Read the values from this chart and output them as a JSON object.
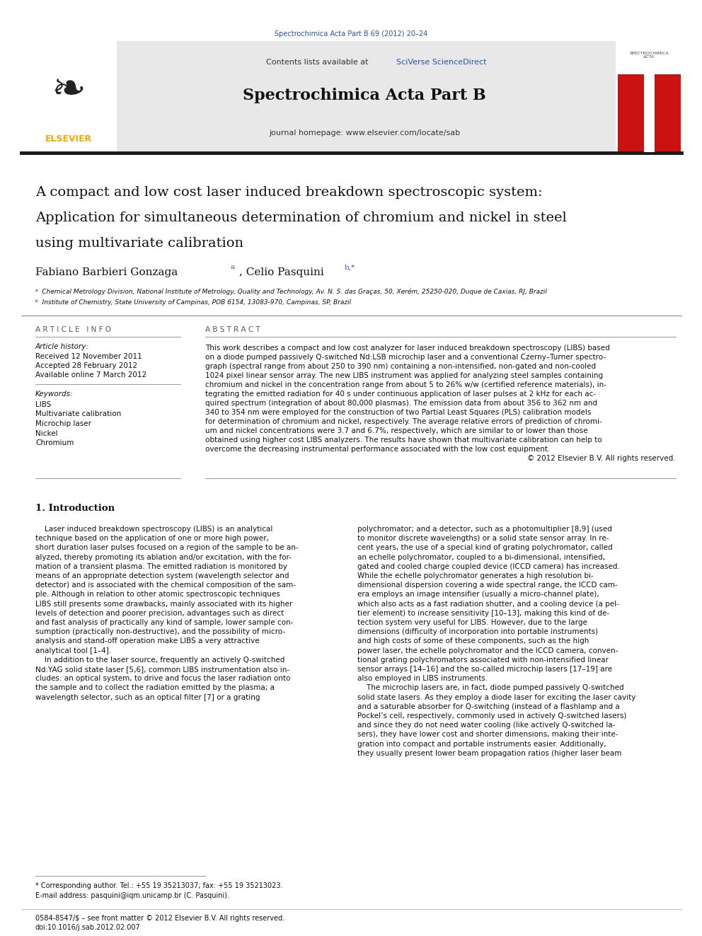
{
  "page_width": 9.92,
  "page_height": 13.23,
  "background_color": "#ffffff",
  "header_journal_ref": "Spectrochimica Acta Part B 69 (2012) 20–24",
  "header_journal_ref_color": "#2255aa",
  "journal_name": "Spectrochimica Acta Part B",
  "journal_homepage": "journal homepage: www.elsevier.com/locate/sab",
  "header_bg_color": "#e8e8e8",
  "article_title_line1": "A compact and low cost laser induced breakdown spectroscopic system:",
  "article_title_line2": "Application for simultaneous determination of chromium and nickel in steel",
  "article_title_line3": "using multivariate calibration",
  "affiliation_a": "ᵇ  Chemical Metrology Division, National Institute of Metrology, Quality and Technology, Av. N. S. das Graças, 50, Xerém, 25250-020, Duque de Caxias, RJ, Brazil",
  "affiliation_b": "ᵇ  Institute of Chemistry, State University of Campinas, POB 6154, 13083-970, Campinas, SP, Brazil",
  "article_info_header": "A R T I C L E   I N F O",
  "article_history_label": "Article history:",
  "received": "Received 12 November 2011",
  "accepted": "Accepted 28 February 2012",
  "available": "Available online 7 March 2012",
  "keywords_label": "Keywords:",
  "keywords": [
    "LIBS",
    "Multivariate calibration",
    "Microchip laser",
    "Nickel",
    "Chromium"
  ],
  "abstract_header": "A B S T R A C T",
  "copyright": "© 2012 Elsevier B.V. All rights reserved.",
  "intro_heading": "1. Introduction",
  "footnote_star": "* Corresponding author. Tel.: +55 19 35213037; fax: +55 19 35213023.",
  "footnote_email": "E-mail address: pasquini@iqm.unicamp.br (C. Pasquini).",
  "footer_issn": "0584-8547/$ – see front matter © 2012 Elsevier B.V. All rights reserved.",
  "footer_doi": "doi:10.1016/j.sab.2012.02.007",
  "link_color": "#2255aa",
  "elsevier_color": "#f5a800",
  "abstract_lines": [
    "This work describes a compact and low cost analyzer for laser induced breakdown spectroscopy (LIBS) based",
    "on a diode pumped passively Q-switched Nd:LSB microchip laser and a conventional Czerny–Turner spectro-",
    "graph (spectral range from about 250 to 390 nm) containing a non-intensified, non-gated and non-cooled",
    "1024 pixel linear sensor array. The new LIBS instrument was applied for analyzing steel samples containing",
    "chromium and nickel in the concentration range from about 5 to 26% w/w (certified reference materials), in-",
    "tegrating the emitted radiation for 40 s under continuous application of laser pulses at 2 kHz for each ac-",
    "quired spectrum (integration of about 80,000 plasmas). The emission data from about 356 to 362 nm and",
    "340 to 354 nm were employed for the construction of two Partial Least Squares (PLS) calibration models",
    "for determination of chromium and nickel, respectively. The average relative errors of prediction of chromi-",
    "um and nickel concentrations were 3.7 and 6.7%, respectively, which are similar to or lower than those",
    "obtained using higher cost LIBS analyzers. The results have shown that multivariate calibration can help to",
    "overcome the decreasing instrumental performance associated with the low cost equipment."
  ],
  "intro_left_lines": [
    "    Laser induced breakdown spectroscopy (LIBS) is an analytical",
    "technique based on the application of one or more high power,",
    "short duration laser pulses focused on a region of the sample to be an-",
    "alyzed, thereby promoting its ablation and/or excitation, with the for-",
    "mation of a transient plasma. The emitted radiation is monitored by",
    "means of an appropriate detection system (wavelength selector and",
    "detector) and is associated with the chemical composition of the sam-",
    "ple. Although in relation to other atomic spectroscopic techniques",
    "LIBS still presents some drawbacks, mainly associated with its higher",
    "levels of detection and poorer precision, advantages such as direct",
    "and fast analysis of practically any kind of sample, lower sample con-",
    "sumption (practically non-destructive), and the possibility of micro-",
    "analysis and stand-off operation make LIBS a very attractive",
    "analytical tool [1–4].",
    "    In addition to the laser source, frequently an actively Q-switched",
    "Nd:YAG solid state laser [5,6], common LIBS instrumentation also in-",
    "cludes: an optical system, to drive and focus the laser radiation onto",
    "the sample and to collect the radiation emitted by the plasma; a",
    "wavelength selector, such as an optical filter [7] or a grating"
  ],
  "intro_right_lines": [
    "polychromator; and a detector, such as a photomultiplier [8,9] (used",
    "to monitor discrete wavelengths) or a solid state sensor array. In re-",
    "cent years, the use of a special kind of grating polychromator, called",
    "an echelle polychromator, coupled to a bi-dimensional, intensified,",
    "gated and cooled charge coupled device (ICCD camera) has increased.",
    "While the echelle polychromator generates a high resolution bi-",
    "dimensional dispersion covering a wide spectral range, the ICCD cam-",
    "era employs an image intensifier (usually a micro-channel plate),",
    "which also acts as a fast radiation shutter, and a cooling device (a pel-",
    "tier element) to increase sensitivity [10–13], making this kind of de-",
    "tection system very useful for LIBS. However, due to the large",
    "dimensions (difficulty of incorporation into portable instruments)",
    "and high costs of some of these components, such as the high",
    "power laser, the echelle polychromator and the ICCD camera, conven-",
    "tional grating polychromators associated with non-intensified linear",
    "sensor arrays [14–16] and the so-called microchip lasers [17–19] are",
    "also employed in LIBS instruments.",
    "    The microchip lasers are, in fact, diode pumped passively Q-switched",
    "solid state lasers. As they employ a diode laser for exciting the laser cavity",
    "and a saturable absorber for Q-switching (instead of a flashlamp and a",
    "Pockel’s cell, respectively, commonly used in actively Q-switched lasers)",
    "and since they do not need water cooling (like actively Q-switched la-",
    "sers), they have lower cost and shorter dimensions, making their inte-",
    "gration into compact and portable instruments easier. Additionally,",
    "they usually present lower beam propagation ratios (higher laser beam"
  ]
}
